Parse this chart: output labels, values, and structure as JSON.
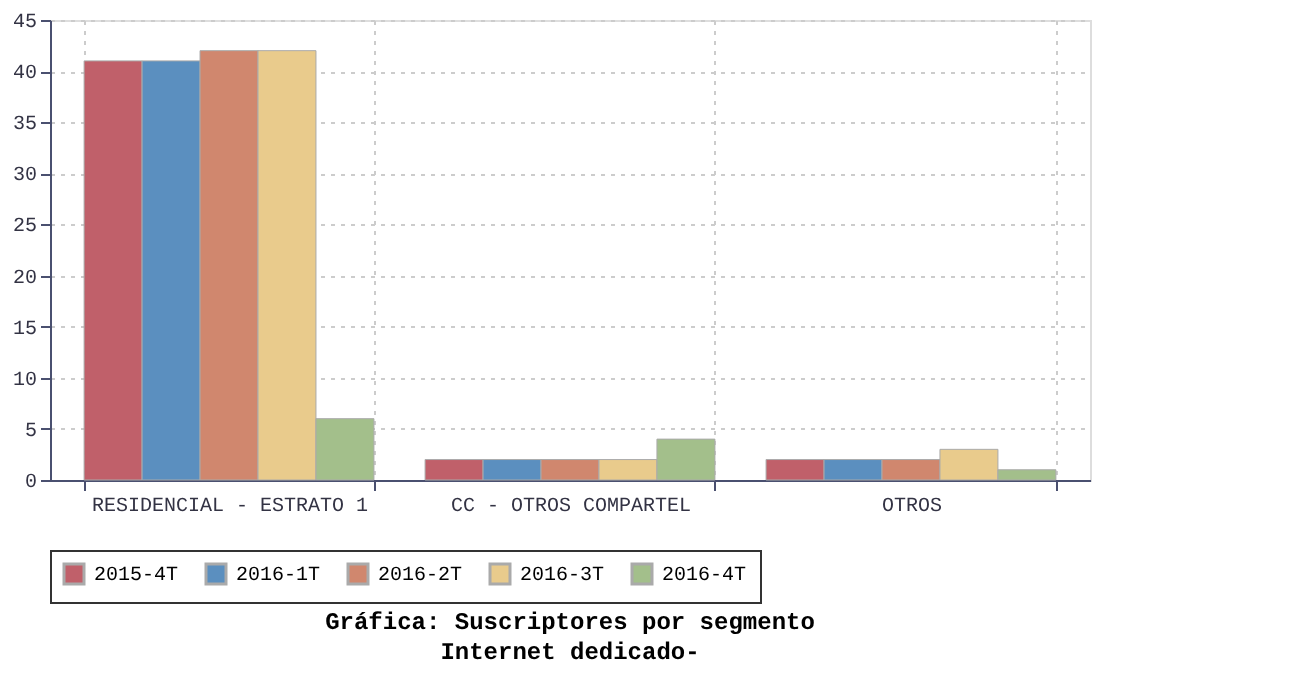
{
  "chart_data": {
    "type": "bar",
    "title": "Gráfica: Suscriptores por segmento",
    "subtitle": "Internet dedicado-",
    "categories": [
      "RESIDENCIAL - ESTRATO 1",
      "CC - OTROS COMPARTEL",
      "OTROS"
    ],
    "series": [
      {
        "name": "2015-4T",
        "color": "#c0606a",
        "values": [
          41,
          2,
          2
        ]
      },
      {
        "name": "2016-1T",
        "color": "#5b8fbf",
        "values": [
          41,
          2,
          2
        ]
      },
      {
        "name": "2016-2T",
        "color": "#d0876e",
        "values": [
          42,
          2,
          2
        ]
      },
      {
        "name": "2016-3T",
        "color": "#e9cb8c",
        "values": [
          42,
          2,
          3
        ]
      },
      {
        "name": "2016-4T",
        "color": "#a3bf8b",
        "values": [
          6,
          4,
          1
        ]
      }
    ],
    "ylim": [
      0,
      45
    ],
    "yticks": [
      0,
      5,
      10,
      15,
      20,
      25,
      30,
      35,
      40,
      45
    ],
    "grid": true,
    "legend": "bottom"
  }
}
